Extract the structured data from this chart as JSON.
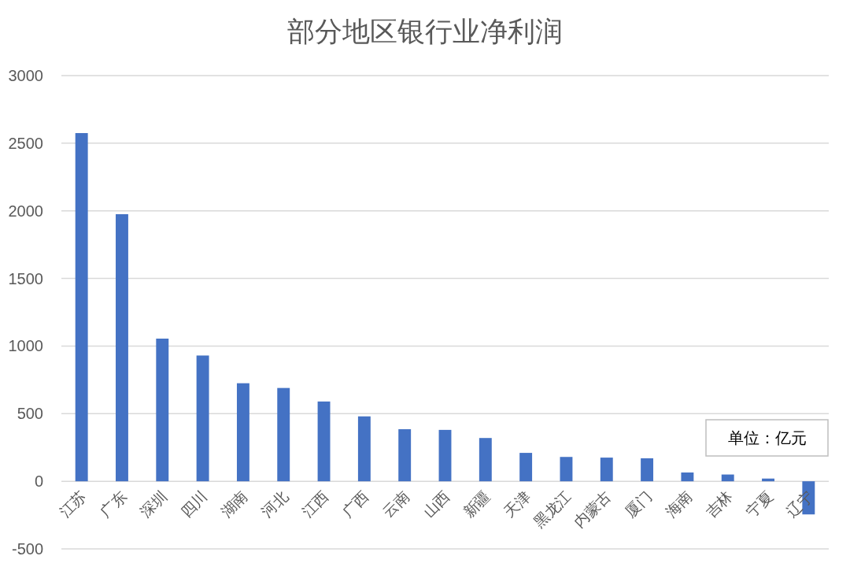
{
  "chart_data": {
    "type": "bar",
    "title": "部分地区银行业净利润",
    "categories": [
      "江苏",
      "广东",
      "深圳",
      "四川",
      "湖南",
      "河北",
      "江西",
      "广西",
      "云南",
      "山西",
      "新疆",
      "天津",
      "黑龙江",
      "内蒙古",
      "厦门",
      "海南",
      "吉林",
      "宁夏",
      "辽宁"
    ],
    "values": [
      2575,
      1975,
      1055,
      930,
      725,
      690,
      590,
      480,
      385,
      380,
      320,
      210,
      180,
      175,
      170,
      65,
      50,
      20,
      -245
    ],
    "color": "#4472c4",
    "ylim": [
      -500,
      3000
    ],
    "yticks": [
      -500,
      0,
      500,
      1000,
      1500,
      2000,
      2500,
      3000
    ],
    "grid": "y",
    "annotations": [
      "单位：亿元"
    ]
  }
}
